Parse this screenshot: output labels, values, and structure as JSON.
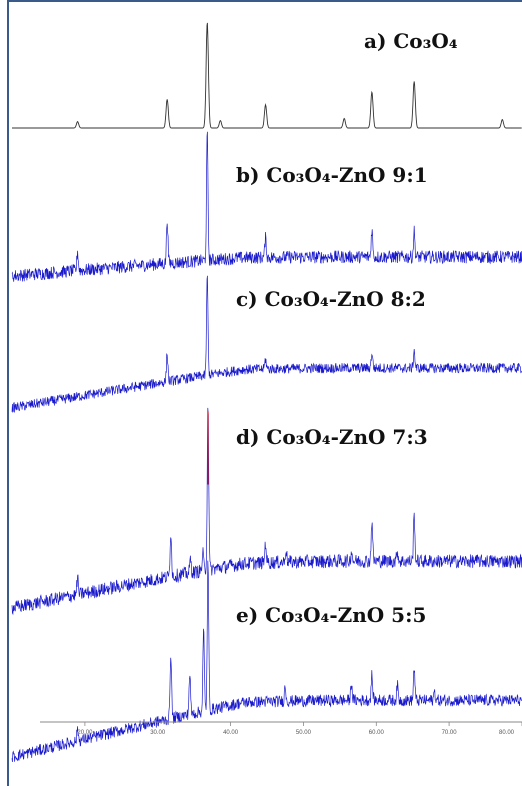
{
  "colors": {
    "background": "#ffffff",
    "frame": "#3a5a8a",
    "trace_a": "#333333",
    "trace_samples": "#1a1acc",
    "trace_highlight": "#d11a2a",
    "axis": "#888888"
  },
  "chart_data": {
    "type": "line",
    "title": "",
    "xlabel": "",
    "ylabel": "",
    "xlim": [
      10,
      80
    ],
    "ticks": [
      {
        "value": 20,
        "label": "20.00"
      },
      {
        "value": 30,
        "label": "30.00"
      },
      {
        "value": 40,
        "label": "40.00"
      },
      {
        "value": 50,
        "label": "50.00"
      },
      {
        "value": 60,
        "label": "60.00"
      },
      {
        "value": 70,
        "label": "70.00"
      },
      {
        "value": 80,
        "label": "80.00"
      }
    ],
    "grid": false,
    "legend": "none",
    "stacked_offsets": true,
    "series": [
      {
        "name": "a) Co₃O₄",
        "color": "trace_a",
        "noise": 0.0,
        "baseline": 0.0,
        "peaks": [
          {
            "x": 19.0,
            "height": 0.06
          },
          {
            "x": 31.3,
            "height": 0.27
          },
          {
            "x": 36.8,
            "height": 1.0
          },
          {
            "x": 38.6,
            "height": 0.07
          },
          {
            "x": 44.8,
            "height": 0.22
          },
          {
            "x": 55.6,
            "height": 0.09
          },
          {
            "x": 59.4,
            "height": 0.34
          },
          {
            "x": 65.2,
            "height": 0.44
          },
          {
            "x": 77.3,
            "height": 0.08
          }
        ]
      },
      {
        "name": "b) Co₃O₄-ZnO 9:1",
        "color": "trace_samples",
        "noise": 0.05,
        "baseline": 0.04,
        "peaks": [
          {
            "x": 19.0,
            "height": 0.15
          },
          {
            "x": 31.3,
            "height": 0.35
          },
          {
            "x": 36.8,
            "height": 1.0
          },
          {
            "x": 44.8,
            "height": 0.15
          },
          {
            "x": 59.4,
            "height": 0.22
          },
          {
            "x": 65.2,
            "height": 0.2
          }
        ]
      },
      {
        "name": "c) Co₃O₄-ZnO 8:2",
        "color": "trace_samples",
        "noise": 0.05,
        "baseline": 0.1,
        "peaks": [
          {
            "x": 31.3,
            "height": 0.28
          },
          {
            "x": 36.8,
            "height": 1.0
          },
          {
            "x": 44.8,
            "height": 0.1
          },
          {
            "x": 59.4,
            "height": 0.16
          },
          {
            "x": 65.2,
            "height": 0.18
          }
        ]
      },
      {
        "name": "d) Co₃O₄-ZnO 7:3",
        "color": "trace_samples",
        "noise": 0.04,
        "baseline": 0.1,
        "peaks": [
          {
            "x": 19.0,
            "height": 0.1
          },
          {
            "x": 31.8,
            "height": 0.27
          },
          {
            "x": 34.5,
            "height": 0.08
          },
          {
            "x": 36.2,
            "height": 0.1
          },
          {
            "x": 36.9,
            "height": 1.0
          },
          {
            "x": 44.8,
            "height": 0.12
          },
          {
            "x": 47.6,
            "height": 0.08
          },
          {
            "x": 56.6,
            "height": 0.06
          },
          {
            "x": 59.4,
            "height": 0.24
          },
          {
            "x": 62.9,
            "height": 0.06
          },
          {
            "x": 65.2,
            "height": 0.27
          }
        ]
      },
      {
        "name": "e) Co₃O₄-ZnO 5:5",
        "color": "trace_samples",
        "noise": 0.04,
        "baseline": 0.1,
        "peaks": [
          {
            "x": 19.0,
            "height": 0.08
          },
          {
            "x": 31.8,
            "height": 0.45
          },
          {
            "x": 34.4,
            "height": 0.28
          },
          {
            "x": 36.3,
            "height": 0.55
          },
          {
            "x": 36.9,
            "height": 1.0
          },
          {
            "x": 47.5,
            "height": 0.1
          },
          {
            "x": 56.6,
            "height": 0.12
          },
          {
            "x": 59.4,
            "height": 0.17
          },
          {
            "x": 62.9,
            "height": 0.1
          },
          {
            "x": 65.2,
            "height": 0.22
          },
          {
            "x": 68.0,
            "height": 0.06
          }
        ]
      }
    ]
  }
}
